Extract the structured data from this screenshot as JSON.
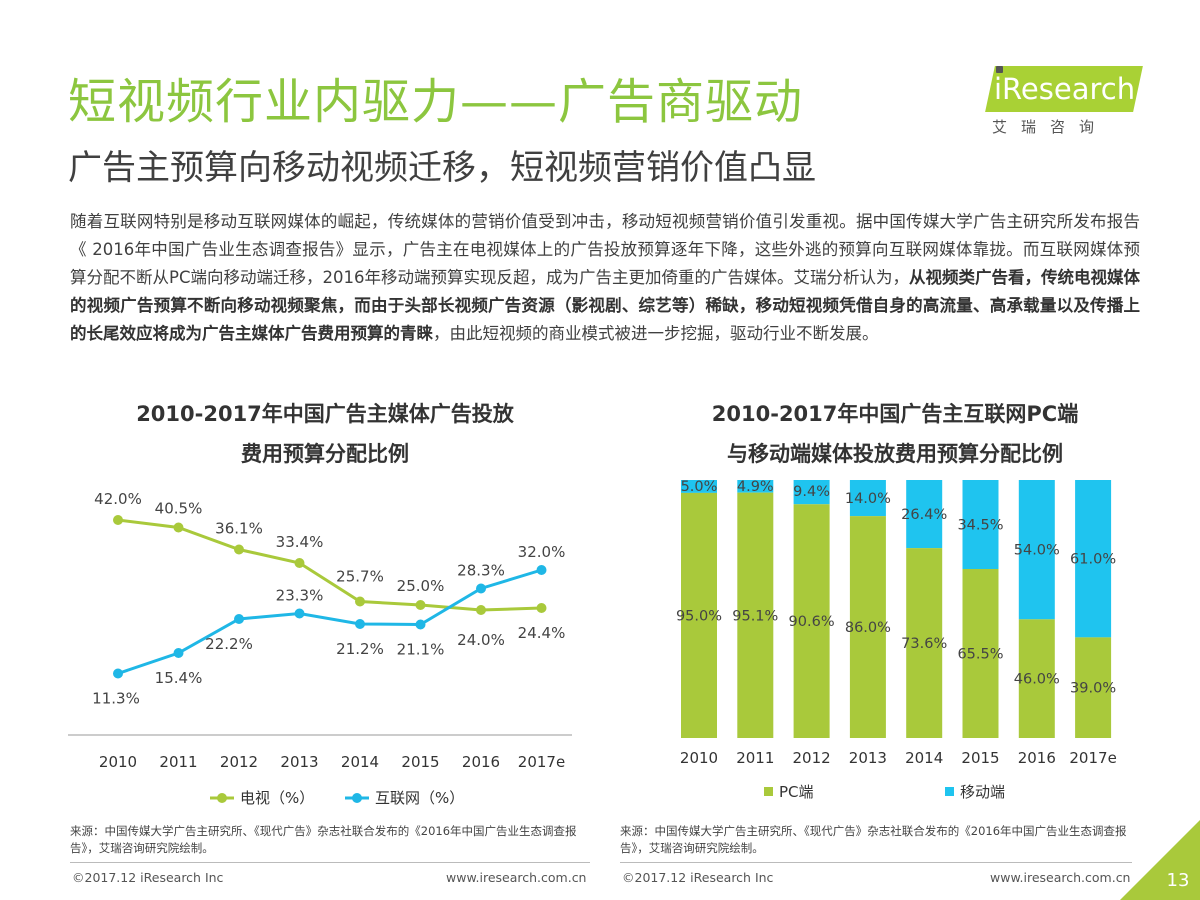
{
  "title": "短视频行业内驱力——广告商驱动",
  "subtitle": "广告主预算向移动视频迁移，短视频营销价值凸显",
  "logo": {
    "brand": "iResearch",
    "cn": "艾瑞咨询"
  },
  "paragraph": {
    "p1": "随着互联网特别是移动互联网媒体的崛起，传统媒体的营销价值受到冲击，移动短视频营销价值引发重视。据中国传媒大学广告主研究所发布报告《 2016年中国广告业生态调查报告》显示，广告主在电视媒体上的广告投放预算逐年下降，这些外逃的预算向互联网媒体靠拢。而互联网媒体预算分配不断从PC端向移动端迁移，2016年移动端预算实现反超，成为广告主更加倚重的广告媒体。艾瑞分析认为，",
    "bold": "从视频类广告看，传统电视媒体的视频广告预算不断向移动视频聚焦，而由于头部长视频广告资源（影视剧、综艺等）稀缺，移动短视频凭借自身的高流量、高承载量以及传播上的长尾效应将成为广告主媒体广告费用预算的青睐",
    "p2": "，由此短视频的商业模式被进一步挖掘，驱动行业不断发展。"
  },
  "chart_data": [
    {
      "type": "line",
      "title": "2010-2017年中国广告主媒体广告投放费用预算分配比例",
      "title_lines": [
        "2010-2017年中国广告主媒体广告投放",
        "费用预算分配比例"
      ],
      "categories": [
        "2010",
        "2011",
        "2012",
        "2013",
        "2014",
        "2015",
        "2016",
        "2017e"
      ],
      "series": [
        {
          "name": "电视（%）",
          "color": "#a9c93b",
          "values": [
            42.0,
            40.5,
            36.1,
            33.4,
            25.7,
            25.0,
            24.0,
            24.4
          ]
        },
        {
          "name": "互联网（%）",
          "color": "#1fb7e6",
          "values": [
            11.3,
            15.4,
            22.2,
            23.3,
            21.2,
            21.1,
            28.3,
            32.0
          ]
        }
      ],
      "ylim": [
        0,
        50
      ],
      "grid": false,
      "legend": "bottom"
    },
    {
      "type": "bar",
      "stacked": true,
      "title": "2010-2017年中国广告主互联网PC端与移动端媒体投放费用预算分配比例",
      "title_lines": [
        "2010-2017年中国广告主互联网PC端",
        "与移动端媒体投放费用预算分配比例"
      ],
      "categories": [
        "2010",
        "2011",
        "2012",
        "2013",
        "2014",
        "2015",
        "2016",
        "2017e"
      ],
      "series": [
        {
          "name": "PC端",
          "color": "#a9c93b",
          "values": [
            95.0,
            95.1,
            90.6,
            86.0,
            73.6,
            65.5,
            46.0,
            39.0
          ]
        },
        {
          "name": "移动端",
          "color": "#1fc4ef",
          "values": [
            5.0,
            4.9,
            9.4,
            14.0,
            26.4,
            34.5,
            54.0,
            61.0
          ]
        }
      ],
      "ylim": [
        0,
        100
      ],
      "grid": false,
      "legend": "bottom"
    }
  ],
  "sources": {
    "left": "来源：中国传媒大学广告主研究所、《现代广告》杂志社联合发布的《2016年中国广告业生态调查报告》，艾瑞咨询研究院绘制。",
    "right": "来源：中国传媒大学广告主研究所、《现代广告》杂志社联合发布的《2016年中国广告业生态调查报告》，艾瑞咨询研究院绘制。"
  },
  "footer": {
    "copyright_left": "©2017.12 iResearch Inc",
    "url_left": "www.iresearch.com.cn",
    "copyright_right": "©2017.12 iResearch Inc",
    "url_right": "www.iresearch.com.cn",
    "page": "13"
  }
}
